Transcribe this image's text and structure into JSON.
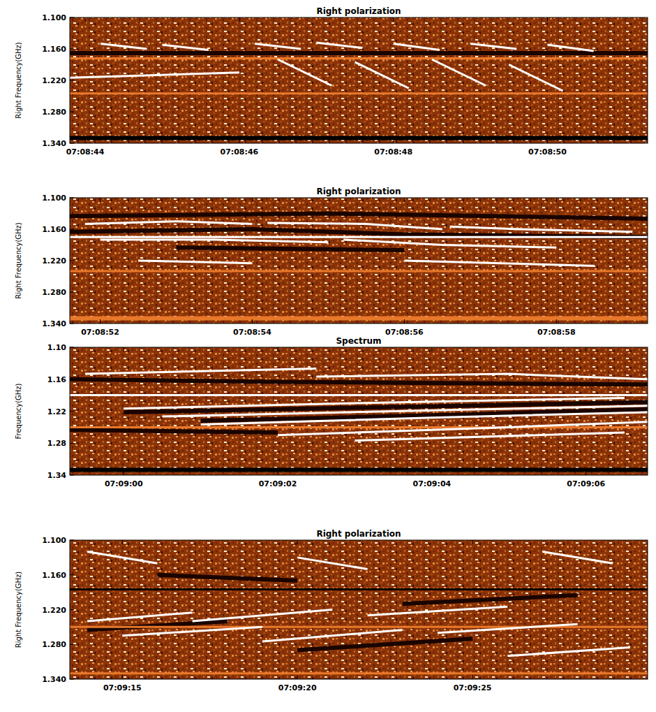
{
  "chart_data": [
    {
      "type": "line",
      "title": "Right polarization",
      "y_label": "Right Frequency(GHz)",
      "xlim": [
        43.8,
        51.3
      ],
      "xticks": [
        {
          "value": 44,
          "label": "07:08:44"
        },
        {
          "value": 46,
          "label": "07:08:46"
        },
        {
          "value": 48,
          "label": "07:08:48"
        },
        {
          "value": 50,
          "label": "07:08:50"
        }
      ],
      "ylim": [
        1.34,
        1.1
      ],
      "yticks": [
        {
          "value": 1.1,
          "label": "1.100"
        },
        {
          "value": 1.16,
          "label": "1.160"
        },
        {
          "value": 1.22,
          "label": "1.220"
        },
        {
          "value": 1.28,
          "label": "1.280"
        },
        {
          "value": 1.34,
          "label": "1.340"
        }
      ],
      "series": [
        {
          "color": "#1a0400",
          "line_style": "band",
          "x": [
            43.8,
            51.3
          ],
          "values": [
            1.168,
            1.168
          ]
        },
        {
          "color": "#e8782a",
          "line_style": "solid",
          "x": [
            43.8,
            51.3
          ],
          "values": [
            1.178,
            1.178
          ]
        },
        {
          "color": "#e8782a",
          "line_style": "solid",
          "x": [
            43.8,
            51.3
          ],
          "values": [
            1.245,
            1.245
          ]
        },
        {
          "color": "#000000",
          "line_style": "band",
          "x": [
            43.8,
            51.3
          ],
          "values": [
            1.33,
            1.33
          ]
        },
        {
          "color": "#ffffff",
          "line_style": "solid",
          "x": [
            43.8,
            46.0
          ],
          "values": [
            1.215,
            1.205
          ]
        },
        {
          "color": "#ffffff",
          "line_style": "solid",
          "x": [
            44.2,
            44.8
          ],
          "values": [
            1.15,
            1.16
          ]
        },
        {
          "color": "#ffffff",
          "line_style": "solid",
          "x": [
            45.0,
            45.6
          ],
          "values": [
            1.152,
            1.162
          ]
        },
        {
          "color": "#ffffff",
          "line_style": "solid",
          "x": [
            46.2,
            46.8
          ],
          "values": [
            1.15,
            1.16
          ]
        },
        {
          "color": "#ffffff",
          "line_style": "solid",
          "x": [
            47.0,
            47.6
          ],
          "values": [
            1.148,
            1.158
          ]
        },
        {
          "color": "#ffffff",
          "line_style": "solid",
          "x": [
            48.0,
            48.6
          ],
          "values": [
            1.15,
            1.162
          ]
        },
        {
          "color": "#ffffff",
          "line_style": "solid",
          "x": [
            49.0,
            49.6
          ],
          "values": [
            1.15,
            1.16
          ]
        },
        {
          "color": "#ffffff",
          "line_style": "solid",
          "x": [
            50.0,
            50.6
          ],
          "values": [
            1.152,
            1.164
          ]
        },
        {
          "color": "#ffffff",
          "line_style": "solid",
          "x": [
            46.5,
            47.2
          ],
          "values": [
            1.18,
            1.23
          ]
        },
        {
          "color": "#ffffff",
          "line_style": "solid",
          "x": [
            47.5,
            48.2
          ],
          "values": [
            1.185,
            1.235
          ]
        },
        {
          "color": "#ffffff",
          "line_style": "solid",
          "x": [
            48.5,
            49.2
          ],
          "values": [
            1.18,
            1.23
          ]
        },
        {
          "color": "#ffffff",
          "line_style": "solid",
          "x": [
            49.5,
            50.2
          ],
          "values": [
            1.19,
            1.24
          ]
        }
      ]
    },
    {
      "type": "line",
      "title": "Right polarization",
      "y_label": "Right Frequency(GHz)",
      "xlim": [
        51.6,
        59.2
      ],
      "xticks": [
        {
          "value": 52,
          "label": "07:08:52"
        },
        {
          "value": 54,
          "label": "07:08:54"
        },
        {
          "value": 56,
          "label": "07:08:56"
        },
        {
          "value": 58,
          "label": "07:08:58"
        }
      ],
      "ylim": [
        1.34,
        1.1
      ],
      "yticks": [
        {
          "value": 1.1,
          "label": "1.100"
        },
        {
          "value": 1.16,
          "label": "1.160"
        },
        {
          "value": 1.22,
          "label": "1.220"
        },
        {
          "value": 1.28,
          "label": "1.280"
        },
        {
          "value": 1.34,
          "label": "1.340"
        }
      ],
      "series": [
        {
          "color": "#1a0400",
          "line_style": "band",
          "x": [
            51.6,
            54.0,
            56.0,
            59.2
          ],
          "values": [
            1.165,
            1.16,
            1.17,
            1.175
          ]
        },
        {
          "color": "#1a0400",
          "line_style": "band",
          "x": [
            51.6,
            55.0,
            59.2
          ],
          "values": [
            1.135,
            1.13,
            1.14
          ]
        },
        {
          "color": "#1a0400",
          "line_style": "band",
          "x": [
            53.0,
            56.0
          ],
          "values": [
            1.195,
            1.2
          ]
        },
        {
          "color": "#ffffff",
          "line_style": "solid",
          "x": [
            51.6,
            59.2
          ],
          "values": [
            1.175,
            1.175
          ]
        },
        {
          "color": "#e8782a",
          "line_style": "solid",
          "x": [
            51.6,
            59.2
          ],
          "values": [
            1.24,
            1.24
          ]
        },
        {
          "color": "#e8782a",
          "line_style": "band",
          "x": [
            51.6,
            59.2
          ],
          "values": [
            1.33,
            1.33
          ]
        },
        {
          "color": "#ffffff",
          "line_style": "solid",
          "x": [
            51.8,
            53.0,
            54.0
          ],
          "values": [
            1.15,
            1.145,
            1.15
          ]
        },
        {
          "color": "#ffffff",
          "line_style": "solid",
          "x": [
            54.2,
            55.5,
            56.5
          ],
          "values": [
            1.148,
            1.15,
            1.16
          ]
        },
        {
          "color": "#ffffff",
          "line_style": "solid",
          "x": [
            56.6,
            57.5,
            59.0
          ],
          "values": [
            1.155,
            1.16,
            1.165
          ]
        },
        {
          "color": "#ffffff",
          "line_style": "solid",
          "x": [
            52.0,
            53.5,
            55.0
          ],
          "values": [
            1.18,
            1.18,
            1.185
          ]
        },
        {
          "color": "#ffffff",
          "line_style": "solid",
          "x": [
            55.2,
            56.5,
            58.0
          ],
          "values": [
            1.18,
            1.19,
            1.195
          ]
        },
        {
          "color": "#ffffff",
          "line_style": "solid",
          "x": [
            52.5,
            54.0
          ],
          "values": [
            1.22,
            1.225
          ]
        },
        {
          "color": "#ffffff",
          "line_style": "solid",
          "x": [
            56.0,
            58.5
          ],
          "values": [
            1.22,
            1.23
          ]
        }
      ]
    },
    {
      "type": "line",
      "title": "Spectrum",
      "y_label": "Frequency(GHz)",
      "xlim": [
        59.3,
        66.8
      ],
      "xticks": [
        {
          "value": 60,
          "label": "07:09:00"
        },
        {
          "value": 62,
          "label": "07:09:02"
        },
        {
          "value": 64,
          "label": "07:09:04"
        },
        {
          "value": 66,
          "label": "07:09:06"
        }
      ],
      "ylim": [
        1.34,
        1.1
      ],
      "yticks": [
        {
          "value": 1.1,
          "label": "1.10"
        },
        {
          "value": 1.16,
          "label": "1.16"
        },
        {
          "value": 1.22,
          "label": "1.22"
        },
        {
          "value": 1.28,
          "label": "1.28"
        },
        {
          "value": 1.34,
          "label": "1.34"
        }
      ],
      "series": [
        {
          "color": "#1a0400",
          "line_style": "band",
          "x": [
            59.3,
            62.0,
            66.8
          ],
          "values": [
            1.16,
            1.165,
            1.17
          ]
        },
        {
          "color": "#1a0400",
          "line_style": "band",
          "x": [
            59.3,
            62.0
          ],
          "values": [
            1.255,
            1.26
          ]
        },
        {
          "color": "#1a0400",
          "line_style": "band",
          "x": [
            60.0,
            63.5,
            66.8
          ],
          "values": [
            1.222,
            1.212,
            1.203
          ]
        },
        {
          "color": "#1a0400",
          "line_style": "band",
          "x": [
            61.0,
            64.5,
            66.8
          ],
          "values": [
            1.238,
            1.226,
            1.216
          ]
        },
        {
          "color": "#ffffff",
          "line_style": "solid",
          "x": [
            59.3,
            66.8
          ],
          "values": [
            1.19,
            1.19
          ]
        },
        {
          "color": "#e8782a",
          "line_style": "solid",
          "x": [
            59.3,
            66.8
          ],
          "values": [
            1.25,
            1.25
          ]
        },
        {
          "color": "#000000",
          "line_style": "band",
          "x": [
            59.3,
            66.8
          ],
          "values": [
            1.33,
            1.33
          ]
        },
        {
          "color": "#ffffff",
          "line_style": "solid",
          "x": [
            59.5,
            62.5
          ],
          "values": [
            1.15,
            1.14
          ]
        },
        {
          "color": "#ffffff",
          "line_style": "solid",
          "x": [
            62.5,
            65.0,
            66.8
          ],
          "values": [
            1.155,
            1.15,
            1.16
          ]
        },
        {
          "color": "#ffffff",
          "line_style": "solid",
          "x": [
            60.0,
            63.0,
            66.5
          ],
          "values": [
            1.215,
            1.205,
            1.195
          ]
        },
        {
          "color": "#ffffff",
          "line_style": "solid",
          "x": [
            60.5,
            63.5,
            66.8
          ],
          "values": [
            1.23,
            1.22,
            1.21
          ]
        },
        {
          "color": "#ffffff",
          "line_style": "solid",
          "x": [
            61.0,
            64.0,
            66.8
          ],
          "values": [
            1.245,
            1.232,
            1.222
          ]
        },
        {
          "color": "#ffffff",
          "line_style": "solid",
          "x": [
            62.0,
            65.0,
            66.8
          ],
          "values": [
            1.265,
            1.25,
            1.24
          ]
        },
        {
          "color": "#ffffff",
          "line_style": "solid",
          "x": [
            63.0,
            66.5
          ],
          "values": [
            1.275,
            1.26
          ]
        }
      ]
    },
    {
      "type": "line",
      "title": "Right polarization",
      "y_label": "Right Frequency(GHz)",
      "xlim": [
        73.5,
        90.0
      ],
      "xticks": [
        {
          "value": 75,
          "label": "07:09:15"
        },
        {
          "value": 80,
          "label": "07:09:20"
        },
        {
          "value": 85,
          "label": "07:09:25"
        }
      ],
      "ylim": [
        1.34,
        1.1
      ],
      "yticks": [
        {
          "value": 1.1,
          "label": "1.100"
        },
        {
          "value": 1.16,
          "label": "1.160"
        },
        {
          "value": 1.22,
          "label": "1.220"
        },
        {
          "value": 1.28,
          "label": "1.280"
        },
        {
          "value": 1.34,
          "label": "1.340"
        }
      ],
      "series": [
        {
          "color": "#1a0400",
          "line_style": "band",
          "x": [
            74.0,
            78.0
          ],
          "values": [
            1.255,
            1.24
          ]
        },
        {
          "color": "#1a0400",
          "line_style": "band",
          "x": [
            80.0,
            85.0
          ],
          "values": [
            1.29,
            1.27
          ]
        },
        {
          "color": "#1a0400",
          "line_style": "band",
          "x": [
            83.0,
            88.0
          ],
          "values": [
            1.21,
            1.195
          ]
        },
        {
          "color": "#1a0400",
          "line_style": "band",
          "x": [
            76.0,
            80.0
          ],
          "values": [
            1.16,
            1.17
          ]
        },
        {
          "color": "#000000",
          "line_style": "solid",
          "x": [
            73.5,
            90.0
          ],
          "values": [
            1.185,
            1.185
          ]
        },
        {
          "color": "#e8782a",
          "line_style": "solid",
          "x": [
            73.5,
            90.0
          ],
          "values": [
            1.25,
            1.25
          ]
        },
        {
          "color": "#e8782a",
          "line_style": "solid",
          "x": [
            73.5,
            90.0
          ],
          "values": [
            1.33,
            1.33
          ]
        },
        {
          "color": "#ffffff",
          "line_style": "solid",
          "x": [
            74.0,
            77.0
          ],
          "values": [
            1.24,
            1.225
          ]
        },
        {
          "color": "#ffffff",
          "line_style": "solid",
          "x": [
            75.0,
            79.0
          ],
          "values": [
            1.265,
            1.25
          ]
        },
        {
          "color": "#ffffff",
          "line_style": "solid",
          "x": [
            77.0,
            81.0
          ],
          "values": [
            1.24,
            1.22
          ]
        },
        {
          "color": "#ffffff",
          "line_style": "solid",
          "x": [
            79.0,
            83.0
          ],
          "values": [
            1.275,
            1.255
          ]
        },
        {
          "color": "#ffffff",
          "line_style": "solid",
          "x": [
            82.0,
            86.0
          ],
          "values": [
            1.23,
            1.215
          ]
        },
        {
          "color": "#ffffff",
          "line_style": "solid",
          "x": [
            84.0,
            88.0
          ],
          "values": [
            1.26,
            1.245
          ]
        },
        {
          "color": "#ffffff",
          "line_style": "solid",
          "x": [
            86.0,
            89.5
          ],
          "values": [
            1.3,
            1.285
          ]
        },
        {
          "color": "#ffffff",
          "line_style": "solid",
          "x": [
            74.0,
            76.0
          ],
          "values": [
            1.12,
            1.14
          ]
        },
        {
          "color": "#ffffff",
          "line_style": "solid",
          "x": [
            80.0,
            82.0
          ],
          "values": [
            1.13,
            1.15
          ]
        },
        {
          "color": "#ffffff",
          "line_style": "solid",
          "x": [
            87.0,
            89.0
          ],
          "values": [
            1.12,
            1.14
          ]
        }
      ]
    }
  ]
}
